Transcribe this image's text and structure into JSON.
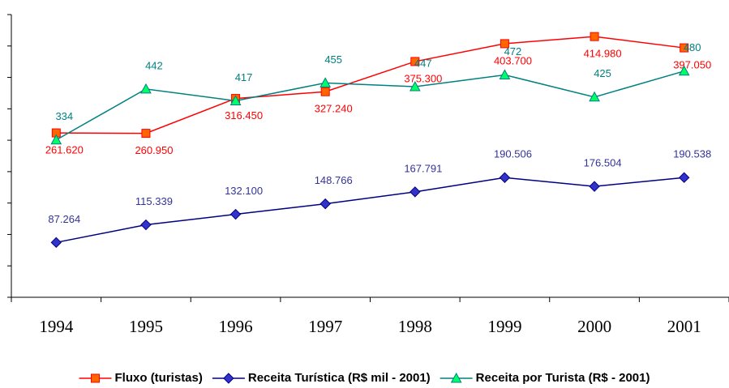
{
  "chart_data": {
    "type": "line",
    "categories": [
      "1994",
      "1995",
      "1996",
      "1997",
      "1998",
      "1999",
      "2000",
      "2001"
    ],
    "ylim": [
      0,
      450000
    ],
    "yticks": [
      0,
      50000,
      100000,
      150000,
      200000,
      250000,
      300000,
      350000,
      400000,
      450000
    ],
    "y2lim": [
      0,
      600
    ],
    "legend": "bottom",
    "series": [
      {
        "name": "Fluxo (turistas)",
        "color": "#ff0000",
        "marker": "square",
        "marker_color": "#ff6600",
        "values": [
          261620,
          260950,
          316450,
          327240,
          375300,
          403700,
          414980,
          397050
        ],
        "value_labels": [
          "261.620",
          "260.950",
          "316.450",
          "327.240",
          "375.300",
          "403.700",
          "414.980",
          "397.050"
        ]
      },
      {
        "name": "Receita Turística (R$ mil - 2001)",
        "color": "#000080",
        "marker": "diamond",
        "marker_color": "#3333cc",
        "values": [
          87264,
          115339,
          132100,
          148766,
          167791,
          190506,
          176504,
          190538
        ],
        "value_labels": [
          "87.264",
          "115.339",
          "132.100",
          "148.766",
          "167.791",
          "190.506",
          "176.504",
          "190.538"
        ]
      },
      {
        "name": "Receita por Turista (R$ - 2001)",
        "color": "#008080",
        "marker": "triangle",
        "marker_color": "#00ff66",
        "axis": "y2",
        "values": [
          334,
          442,
          417,
          455,
          447,
          472,
          425,
          480
        ]
      }
    ]
  }
}
